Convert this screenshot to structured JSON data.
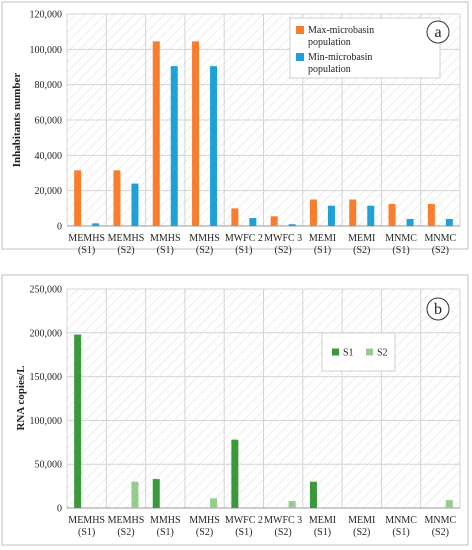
{
  "chart_data": [
    {
      "type": "bar",
      "panel_tag": "a",
      "ylabel": "Inhabitants number",
      "ylim": [
        0,
        120000
      ],
      "yticks": [
        0,
        20000,
        40000,
        60000,
        80000,
        100000,
        120000
      ],
      "ytick_labels": [
        "0",
        "20,000",
        "40,000",
        "60,000",
        "80,000",
        "100,000",
        "120,000"
      ],
      "grid": true,
      "legend_position": "top-right",
      "categories": [
        [
          "MEMHS",
          "(S1)"
        ],
        [
          "MEMHS",
          "(S2)"
        ],
        [
          "MMHS",
          "(S1)"
        ],
        [
          "MMHS",
          "(S2)"
        ],
        [
          "MWFC 2",
          "(S1)"
        ],
        [
          "MWFC 3",
          "(S2)"
        ],
        [
          "MEMI",
          "(S1)"
        ],
        [
          "MEMI",
          "(S2)"
        ],
        [
          "MNMC",
          "(S1)"
        ],
        [
          "MNMC",
          "(S2)"
        ]
      ],
      "series": [
        {
          "name": [
            "Max-microbasin",
            "population"
          ],
          "color": "#f97d2c",
          "values": [
            31500,
            31500,
            104500,
            104500,
            10000,
            5500,
            15000,
            15000,
            12500,
            12500
          ]
        },
        {
          "name": [
            "Min-microbasin",
            "population"
          ],
          "color": "#1ea1d9",
          "values": [
            1500,
            24000,
            90500,
            90500,
            4500,
            1000,
            11500,
            11500,
            4000,
            4000
          ]
        }
      ]
    },
    {
      "type": "bar",
      "panel_tag": "b",
      "ylabel": "RNA copies/L",
      "ylim": [
        0,
        250000
      ],
      "yticks": [
        0,
        50000,
        100000,
        150000,
        200000,
        250000
      ],
      "ytick_labels": [
        "0",
        "50,000",
        "100,000",
        "150,000",
        "200,000",
        "250,000"
      ],
      "grid": true,
      "legend_position": "center-right",
      "categories": [
        [
          "MEMHS",
          "(S1)"
        ],
        [
          "MEMHS",
          "(S2)"
        ],
        [
          "MMHS",
          "(S1)"
        ],
        [
          "MMHS",
          "(S2)"
        ],
        [
          "MWFC 2",
          "(S1)"
        ],
        [
          "MWFC 3",
          "(S2)"
        ],
        [
          "MEMI",
          "(S1)"
        ],
        [
          "MEMI",
          "(S2)"
        ],
        [
          "MNMC",
          "(S1)"
        ],
        [
          "MNMC",
          "(S2)"
        ]
      ],
      "series": [
        {
          "name": [
            "S1"
          ],
          "color": "#3a9a39",
          "values": [
            198000,
            0,
            33000,
            0,
            78000,
            0,
            30000,
            0,
            0,
            0
          ]
        },
        {
          "name": [
            "S2"
          ],
          "color": "#97cb8e",
          "values": [
            0,
            30000,
            0,
            11000,
            0,
            8000,
            0,
            0,
            0,
            9000
          ]
        }
      ]
    }
  ]
}
